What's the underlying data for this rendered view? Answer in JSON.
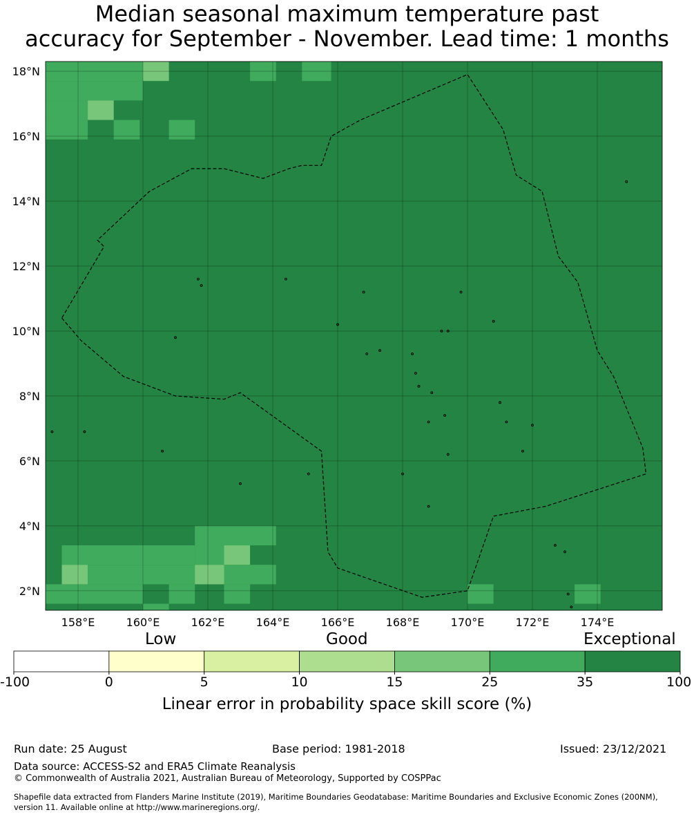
{
  "title_line1": "Median seasonal maximum temperature past",
  "title_line2": "accuracy for September - November. Lead time: 1 months",
  "map": {
    "lon_range": [
      157.0,
      176.0
    ],
    "lat_range": [
      1.4,
      18.3
    ],
    "lon_ticks": [
      {
        "value": 158,
        "label": "158°E"
      },
      {
        "value": 160,
        "label": "160°E"
      },
      {
        "value": 162,
        "label": "162°E"
      },
      {
        "value": 164,
        "label": "164°E"
      },
      {
        "value": 166,
        "label": "166°E"
      },
      {
        "value": 168,
        "label": "168°E"
      },
      {
        "value": 170,
        "label": "170°E"
      },
      {
        "value": 172,
        "label": "172°E"
      },
      {
        "value": 174,
        "label": "174°E"
      }
    ],
    "lat_ticks": [
      {
        "value": 18,
        "label": "18°N"
      },
      {
        "value": 16,
        "label": "16°N"
      },
      {
        "value": 14,
        "label": "14°N"
      },
      {
        "value": 12,
        "label": "12°N"
      },
      {
        "value": 10,
        "label": "10°N"
      },
      {
        "value": 8,
        "label": "8°N"
      },
      {
        "value": 6,
        "label": "6°N"
      },
      {
        "value": 4,
        "label": "4°N"
      },
      {
        "value": 2,
        "label": "2°N"
      }
    ],
    "background_color": "#238443",
    "cells": [
      {
        "lon": [
          157.0,
          160.0
        ],
        "lat": [
          17.7,
          18.3
        ],
        "color": "#41ab5d"
      },
      {
        "lon": [
          160.0,
          160.8
        ],
        "lat": [
          17.7,
          18.3
        ],
        "color": "#78c679"
      },
      {
        "lon": [
          157.0,
          160.0
        ],
        "lat": [
          17.1,
          17.7
        ],
        "color": "#41ab5d"
      },
      {
        "lon": [
          157.0,
          158.3
        ],
        "lat": [
          16.5,
          17.1
        ],
        "color": "#41ab5d"
      },
      {
        "lon": [
          158.3,
          159.1
        ],
        "lat": [
          16.5,
          17.1
        ],
        "color": "#78c679"
      },
      {
        "lon": [
          157.0,
          158.3
        ],
        "lat": [
          15.9,
          16.5
        ],
        "color": "#41ab5d"
      },
      {
        "lon": [
          159.1,
          159.9
        ],
        "lat": [
          15.9,
          16.5
        ],
        "color": "#41ab5d"
      },
      {
        "lon": [
          160.8,
          161.6
        ],
        "lat": [
          15.9,
          16.5
        ],
        "color": "#41ab5d"
      },
      {
        "lon": [
          163.3,
          164.1
        ],
        "lat": [
          17.7,
          18.3
        ],
        "color": "#41ab5d"
      },
      {
        "lon": [
          164.9,
          165.8
        ],
        "lat": [
          17.7,
          18.3
        ],
        "color": "#41ab5d"
      },
      {
        "lon": [
          161.6,
          164.1
        ],
        "lat": [
          3.4,
          4.0
        ],
        "color": "#41ab5d"
      },
      {
        "lon": [
          157.5,
          161.6
        ],
        "lat": [
          2.8,
          3.4
        ],
        "color": "#41ab5d"
      },
      {
        "lon": [
          161.6,
          162.5
        ],
        "lat": [
          2.8,
          3.4
        ],
        "color": "#41ab5d"
      },
      {
        "lon": [
          162.5,
          163.3
        ],
        "lat": [
          2.8,
          3.4
        ],
        "color": "#78c679"
      },
      {
        "lon": [
          157.5,
          158.3
        ],
        "lat": [
          2.2,
          2.8
        ],
        "color": "#78c679"
      },
      {
        "lon": [
          158.3,
          161.6
        ],
        "lat": [
          2.2,
          2.8
        ],
        "color": "#41ab5d"
      },
      {
        "lon": [
          161.6,
          162.5
        ],
        "lat": [
          2.2,
          2.8
        ],
        "color": "#78c679"
      },
      {
        "lon": [
          162.5,
          164.1
        ],
        "lat": [
          2.2,
          2.8
        ],
        "color": "#41ab5d"
      },
      {
        "lon": [
          157.0,
          160.0
        ],
        "lat": [
          1.6,
          2.2
        ],
        "color": "#41ab5d"
      },
      {
        "lon": [
          160.8,
          161.6
        ],
        "lat": [
          1.6,
          2.2
        ],
        "color": "#41ab5d"
      },
      {
        "lon": [
          162.5,
          163.3
        ],
        "lat": [
          1.6,
          2.2
        ],
        "color": "#41ab5d"
      },
      {
        "lon": [
          160.0,
          160.8
        ],
        "lat": [
          1.4,
          1.6
        ],
        "color": "#41ab5d"
      },
      {
        "lon": [
          170.0,
          170.8
        ],
        "lat": [
          1.6,
          2.2
        ],
        "color": "#41ab5d"
      },
      {
        "lon": [
          173.3,
          174.1
        ],
        "lat": [
          1.6,
          2.2
        ],
        "color": "#41ab5d"
      }
    ],
    "eez_boundary": [
      [
        157.5,
        10.4
      ],
      [
        158.1,
        9.7
      ],
      [
        159.4,
        8.6
      ],
      [
        161.0,
        8.0
      ],
      [
        162.5,
        7.9
      ],
      [
        163.0,
        8.1
      ],
      [
        165.5,
        6.3
      ],
      [
        165.7,
        3.2
      ],
      [
        166.0,
        2.7
      ],
      [
        168.6,
        1.8
      ],
      [
        170.0,
        2.0
      ],
      [
        170.8,
        4.3
      ],
      [
        172.4,
        4.6
      ],
      [
        175.5,
        5.6
      ],
      [
        175.4,
        6.4
      ],
      [
        174.5,
        8.6
      ],
      [
        174.0,
        9.4
      ],
      [
        173.4,
        11.5
      ],
      [
        172.8,
        12.3
      ],
      [
        172.3,
        14.3
      ],
      [
        171.5,
        14.8
      ],
      [
        171.1,
        16.2
      ],
      [
        170.0,
        17.9
      ],
      [
        166.7,
        16.5
      ],
      [
        165.8,
        16.0
      ],
      [
        165.5,
        15.1
      ],
      [
        164.9,
        15.1
      ],
      [
        164.5,
        15.0
      ],
      [
        163.7,
        14.7
      ],
      [
        162.5,
        15.0
      ],
      [
        161.5,
        15.0
      ],
      [
        160.2,
        14.3
      ],
      [
        158.6,
        12.8
      ],
      [
        158.8,
        12.6
      ],
      [
        157.5,
        10.4
      ]
    ],
    "islands": [
      [
        157.2,
        6.9
      ],
      [
        161.7,
        11.6
      ],
      [
        161.8,
        11.4
      ],
      [
        164.4,
        11.6
      ],
      [
        166.8,
        11.2
      ],
      [
        169.8,
        11.2
      ],
      [
        166.0,
        10.2
      ],
      [
        170.8,
        10.3
      ],
      [
        161.0,
        9.8
      ],
      [
        168.3,
        9.3
      ],
      [
        168.4,
        8.7
      ],
      [
        166.9,
        9.3
      ],
      [
        167.3,
        9.4
      ],
      [
        169.2,
        10.0
      ],
      [
        169.4,
        10.0
      ],
      [
        168.9,
        8.1
      ],
      [
        168.5,
        8.3
      ],
      [
        171.0,
        7.8
      ],
      [
        171.2,
        7.2
      ],
      [
        172.0,
        7.1
      ],
      [
        171.7,
        6.3
      ],
      [
        169.4,
        6.2
      ],
      [
        165.1,
        5.6
      ],
      [
        168.0,
        5.6
      ],
      [
        168.8,
        4.6
      ],
      [
        172.7,
        3.4
      ],
      [
        163.0,
        5.3
      ],
      [
        160.6,
        6.3
      ],
      [
        158.2,
        6.9
      ],
      [
        168.8,
        7.2
      ],
      [
        169.3,
        7.4
      ],
      [
        173.1,
        1.9
      ],
      [
        173.2,
        1.5
      ],
      [
        173.0,
        3.2
      ],
      [
        174.9,
        14.6
      ]
    ]
  },
  "colorbar": {
    "categories": [
      {
        "label": "Low",
        "value": 0
      },
      {
        "label": "Good",
        "value": 12.5
      },
      {
        "label": "Exceptional",
        "value": 100
      }
    ],
    "boundaries": [
      -100,
      0,
      5,
      10,
      15,
      25,
      35,
      100
    ],
    "tick_labels": [
      "-100",
      "0",
      "5",
      "10",
      "15",
      "25",
      "35",
      "100"
    ],
    "colors": [
      "#ffffff",
      "#ffffcc",
      "#d9f0a3",
      "#addd8e",
      "#78c679",
      "#41ab5d",
      "#238443"
    ],
    "title": "Linear error in probability space skill score (%)"
  },
  "footer": {
    "run_date": "Run date: 25 August",
    "base_period": "Base period: 1981-2018",
    "issued": "Issued: 23/12/2021",
    "data_source": "Data source: ACCESS-S2 and ERA5 Climate Reanalysis",
    "copyright": "© Commonwealth of Australia 2021, Australian Bureau of Meteorology, Supported by COSPPac",
    "shapefile_line1": "Shapefile data extracted from Flanders Marine Institute (2019), Maritime Boundaries Geodatabase: Maritime Boundaries and Exclusive Economic Zones (200NM),",
    "shapefile_line2": "version 11. Available online at http://www.marineregions.org/."
  }
}
